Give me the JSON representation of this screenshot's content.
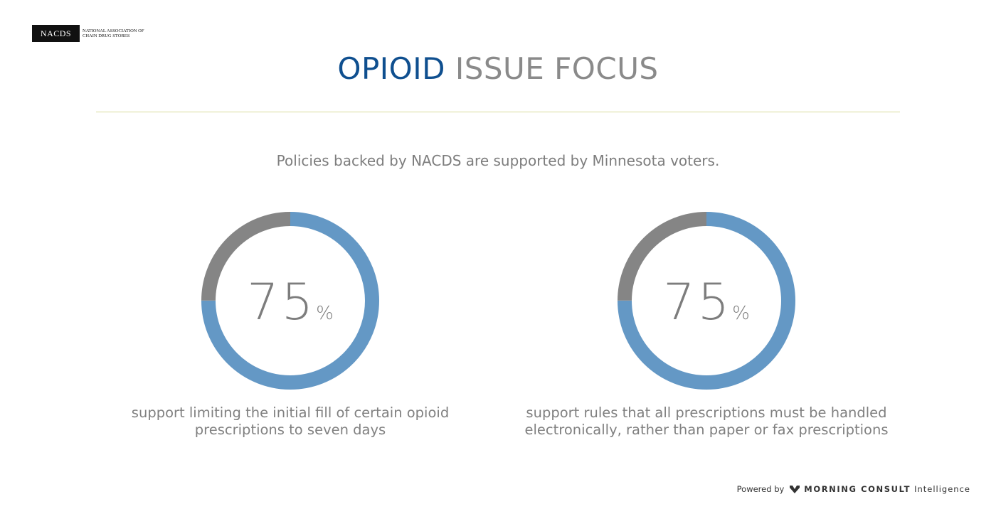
{
  "brand": {
    "logo_mark": "NACDS",
    "logo_line1": "NATIONAL ASSOCIATION OF",
    "logo_line2": "CHAIN DRUG STORES"
  },
  "header": {
    "title_accent": "OPIOID",
    "title_rest": "ISSUE FOCUS",
    "subtitle": "Policies backed by NACDS are supported by Minnesota voters."
  },
  "colors": {
    "support": "#6498c5",
    "remainder": "#858585",
    "title_accent": "#0f4f8f",
    "rule": "#d8dc9c"
  },
  "chart_data": [
    {
      "type": "pie",
      "values": [
        75,
        25
      ],
      "value_label": "75",
      "unit": "%",
      "caption_line1": "support limiting the initial fill of certain opioid",
      "caption_line2": "prescriptions to seven days"
    },
    {
      "type": "pie",
      "values": [
        75,
        25
      ],
      "value_label": "75",
      "unit": "%",
      "caption_line1": "support rules that all prescriptions must be handled",
      "caption_line2": "electronically, rather than paper or fax prescriptions"
    }
  ],
  "footer": {
    "powered_by": "Powered by",
    "company": "MORNING CONSULT",
    "product": "Intelligence",
    "logo_icon": "morning-consult-m-icon"
  }
}
